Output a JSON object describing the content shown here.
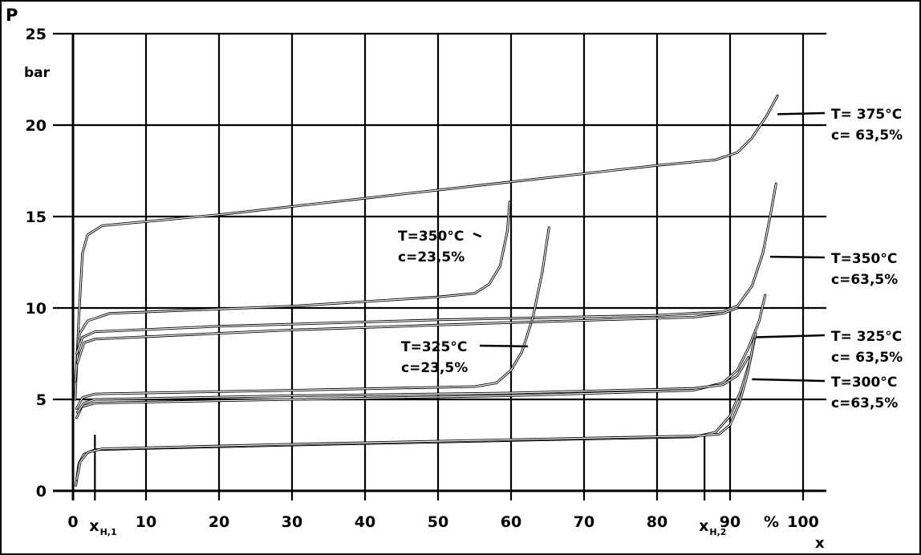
{
  "chart_data": {
    "type": "line",
    "title": "",
    "ylabel": "P",
    "yunit": "bar",
    "xlabel": "x",
    "xunit": "%",
    "xlim": [
      0,
      100
    ],
    "ylim": [
      0,
      25
    ],
    "grid": true,
    "x_ticks": [
      "0",
      "10",
      "20",
      "30",
      "40",
      "50",
      "60",
      "70",
      "80",
      "90",
      "100"
    ],
    "y_ticks": [
      "0",
      "5",
      "10",
      "15",
      "20",
      "25"
    ],
    "x_markers": [
      {
        "label": "x",
        "subscript": "H,1",
        "x": 3
      },
      {
        "label": "x",
        "subscript": "H,2",
        "x": 86.5
      }
    ],
    "series": [
      {
        "id": "s375",
        "labels": [
          "T= 375°C",
          "c= 63,5%"
        ],
        "points": [
          [
            0.3,
            5
          ],
          [
            0.8,
            9.5
          ],
          [
            1.3,
            13
          ],
          [
            2,
            14
          ],
          [
            4,
            14.5
          ],
          [
            20,
            15.1
          ],
          [
            40,
            16
          ],
          [
            60,
            16.9
          ],
          [
            80,
            17.8
          ],
          [
            88,
            18.1
          ],
          [
            91,
            18.5
          ],
          [
            93,
            19.3
          ],
          [
            95,
            20.5
          ],
          [
            96.5,
            21.6
          ]
        ]
      },
      {
        "id": "s350a",
        "labels": [
          "T=350°C",
          "c=23,5%"
        ],
        "points": [
          [
            0.3,
            6
          ],
          [
            0.9,
            8.6
          ],
          [
            2,
            9.3
          ],
          [
            5,
            9.7
          ],
          [
            30,
            10.1
          ],
          [
            50,
            10.6
          ],
          [
            55,
            10.8
          ],
          [
            57,
            11.3
          ],
          [
            58.5,
            12.3
          ],
          [
            59.5,
            14.2
          ],
          [
            59.8,
            15.8
          ]
        ]
      },
      {
        "id": "s350b",
        "labels": [
          "T=350°C",
          "c=63,5%"
        ],
        "points": [
          [
            0.5,
            7.5
          ],
          [
            1.3,
            8.4
          ],
          [
            3,
            8.7
          ],
          [
            20,
            9
          ],
          [
            50,
            9.35
          ],
          [
            80,
            9.6
          ],
          [
            89,
            9.8
          ],
          [
            91,
            10.1
          ],
          [
            93,
            11.2
          ],
          [
            94.5,
            13
          ],
          [
            95.5,
            15
          ],
          [
            96.3,
            16.8
          ]
        ]
      },
      {
        "id": "s325a",
        "labels": [
          "T=325°C",
          "c=23,5%"
        ],
        "points": [
          [
            0.5,
            4.5
          ],
          [
            1.3,
            5.1
          ],
          [
            3,
            5.3
          ],
          [
            30,
            5.5
          ],
          [
            55,
            5.7
          ],
          [
            58,
            5.9
          ],
          [
            60,
            6.6
          ],
          [
            61.5,
            7.6
          ],
          [
            63,
            9.5
          ],
          [
            64.3,
            12
          ],
          [
            65.2,
            14.4
          ]
        ]
      },
      {
        "id": "s325b",
        "labels": [
          "T= 325°C",
          "c= 63,5%"
        ],
        "points": [
          [
            0.5,
            4
          ],
          [
            1.2,
            4.6
          ],
          [
            3,
            4.8
          ],
          [
            30,
            5
          ],
          [
            60,
            5.2
          ],
          [
            85,
            5.5
          ],
          [
            89,
            5.9
          ],
          [
            91,
            6.6
          ],
          [
            92.5,
            7.8
          ],
          [
            94,
            9.3
          ],
          [
            94.8,
            10.7
          ]
        ]
      },
      {
        "id": "s300",
        "labels": [
          "T=300°C",
          "c=63,5%"
        ],
        "points": [
          [
            0.4,
            0.3
          ],
          [
            0.8,
            1.5
          ],
          [
            1.5,
            2
          ],
          [
            3,
            2.25
          ],
          [
            30,
            2.5
          ],
          [
            60,
            2.75
          ],
          [
            85,
            2.95
          ],
          [
            88,
            3.2
          ],
          [
            90,
            4.1
          ],
          [
            91.5,
            5.5
          ],
          [
            92.8,
            7.2
          ],
          [
            93.5,
            8.6
          ]
        ]
      }
    ],
    "extra_curves": [
      {
        "id": "e350",
        "points": [
          [
            0.6,
            7
          ],
          [
            1.5,
            8.1
          ],
          [
            3,
            8.3
          ],
          [
            30,
            8.8
          ],
          [
            60,
            9.2
          ],
          [
            85,
            9.5
          ],
          [
            89,
            9.7
          ],
          [
            91,
            10
          ]
        ]
      },
      {
        "id": "e325",
        "points": [
          [
            0.6,
            4.3
          ],
          [
            1.5,
            4.8
          ],
          [
            3,
            5
          ],
          [
            30,
            5.2
          ],
          [
            60,
            5.35
          ],
          [
            85,
            5.6
          ],
          [
            89,
            5.8
          ],
          [
            91,
            6.3
          ],
          [
            92.5,
            7.3
          ]
        ]
      },
      {
        "id": "e300",
        "points": [
          [
            0.5,
            0.6
          ],
          [
            1,
            1.6
          ],
          [
            2,
            2.1
          ],
          [
            4,
            2.3
          ],
          [
            30,
            2.55
          ],
          [
            60,
            2.8
          ],
          [
            85,
            3
          ],
          [
            88.5,
            3.1
          ],
          [
            90,
            3.6
          ],
          [
            91.3,
            4.8
          ],
          [
            92.5,
            6.6
          ],
          [
            93.3,
            8.3
          ]
        ]
      }
    ],
    "annotations": [
      {
        "series": "s375",
        "anchor": [
          96.5,
          20.6
        ]
      },
      {
        "series": "s350a",
        "anchor": [
          55.9,
          13.9
        ]
      },
      {
        "series": "s350b",
        "anchor": [
          95.5,
          12.8
        ]
      },
      {
        "series": "s325a",
        "anchor": [
          62.3,
          7.9
        ]
      },
      {
        "series": "s325b",
        "anchor": [
          93.5,
          8.4
        ]
      },
      {
        "series": "s300",
        "anchor": [
          93,
          6.1
        ]
      }
    ]
  }
}
